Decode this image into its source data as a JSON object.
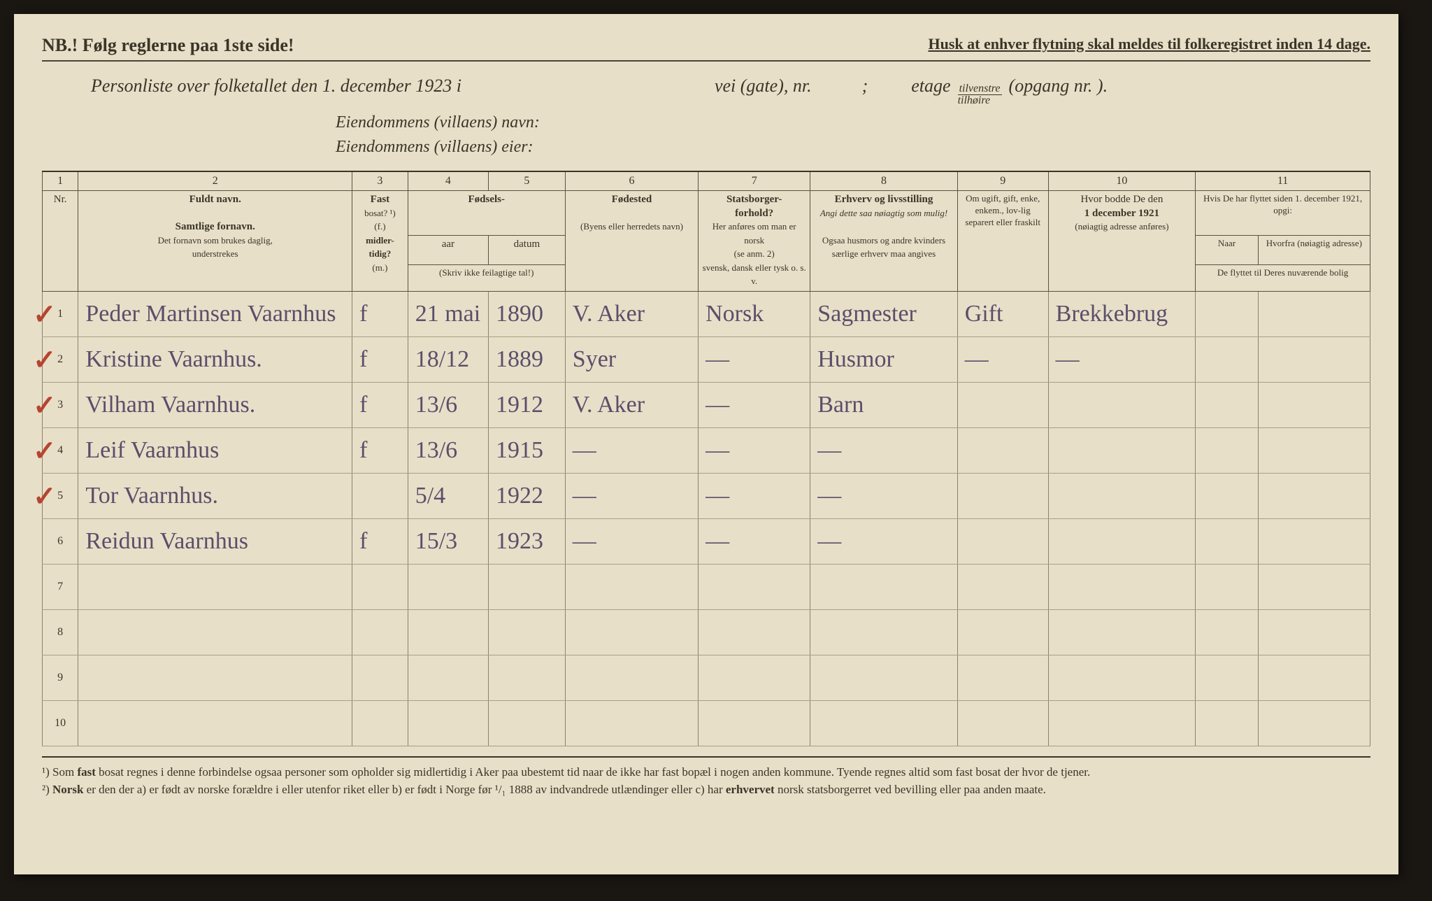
{
  "header": {
    "nb": "NB.! Følg reglerne paa 1ste side!",
    "husk": "Husk at enhver flytning skal meldes til folkeregistret inden 14 dage.",
    "title_a": "Personliste over folketallet den 1. december 1923 i",
    "title_b": "vei (gate), nr.",
    "title_c": ";",
    "title_d": "etage",
    "frac_top": "tilvenstre",
    "frac_bot": "tilhøire",
    "title_e": "(opgang nr.       ).",
    "sub1": "Eiendommens (villaens) navn:",
    "sub2": "Eiendommens (villaens) eier:"
  },
  "colnums": [
    "1",
    "2",
    "3",
    "4",
    "5",
    "6",
    "7",
    "8",
    "9",
    "10",
    "11"
  ],
  "columns": {
    "nr": "Nr.",
    "name_title": "Fuldt navn.",
    "name_sub1": "Samtlige fornavn.",
    "name_sub2": "Det fornavn som brukes daglig,",
    "name_sub3": "understrekes",
    "fast1": "Fast",
    "fast2": "bosat? ¹)",
    "fast3": "(f.)",
    "fast4": "midler-",
    "fast5": "tidig?",
    "fast6": "(m.)",
    "fodsels": "Fødsels-",
    "aar": "aar",
    "datum": "datum",
    "aar_sub": "(Skriv ikke feilagtige tal!)",
    "fodested": "Fødested",
    "fodested_sub": "(Byens eller herredets navn)",
    "stats1": "Statsborger-",
    "stats2": "forhold?",
    "stats_sub1": "Her anføres om man er norsk",
    "stats_sub2": "(se anm. 2)",
    "stats_sub3": "svensk, dansk eller tysk o. s. v.",
    "erhverv1": "Erhverv og livsstilling",
    "erhverv_sub1": "Angi dette saa nøiagtig som mulig!",
    "erhverv_sub2": "Ogsaa husmors og andre kvinders særlige erhverv maa angives",
    "ugift": "Om ugift, gift, enke, enkem., lov-lig separert eller fraskilt",
    "bodde1": "Hvor bodde De den",
    "bodde2": "1 december 1921",
    "bodde_sub": "(nøiagtig adresse anføres)",
    "flyt1": "Hvis De har flyttet siden 1. december 1921, opgi:",
    "naar": "Naar",
    "hvorfra": "Hvorfra (nøiagtig adresse)",
    "flyt2": "De flyttet til Deres nuværende bolig"
  },
  "rows": [
    {
      "nr": "1",
      "check": true,
      "name": "Peder Martinsen Vaarnhus",
      "fast": "f",
      "datum": "21 mai",
      "aar": "1890",
      "sted": "V. Aker",
      "stats": "Norsk",
      "erhv": "Sagmester",
      "gift": "Gift",
      "bodde": "Brekkebrug"
    },
    {
      "nr": "2",
      "check": true,
      "name": "Kristine Vaarnhus.",
      "fast": "f",
      "datum": "18/12",
      "aar": "1889",
      "sted": "Syer",
      "stats": "—",
      "erhv": "Husmor",
      "gift": "—",
      "bodde": "—"
    },
    {
      "nr": "3",
      "check": true,
      "name": "Vilham Vaarnhus.",
      "fast": "f",
      "datum": "13/6",
      "aar": "1912",
      "sted": "V. Aker",
      "stats": "—",
      "erhv": "Barn",
      "gift": "",
      "bodde": ""
    },
    {
      "nr": "4",
      "check": true,
      "name": "Leif Vaarnhus",
      "fast": "f",
      "datum": "13/6",
      "aar": "1915",
      "sted": "—",
      "stats": "—",
      "erhv": "—",
      "gift": "",
      "bodde": ""
    },
    {
      "nr": "5",
      "check": true,
      "name": "Tor Vaarnhus.",
      "fast": "",
      "datum": "5/4",
      "aar": "1922",
      "sted": "—",
      "stats": "—",
      "erhv": "—",
      "gift": "",
      "bodde": ""
    },
    {
      "nr": "6",
      "check": false,
      "name": "Reidun Vaarnhus",
      "fast": "f",
      "datum": "15/3",
      "aar": "1923",
      "sted": "—",
      "stats": "—",
      "erhv": "—",
      "gift": "",
      "bodde": ""
    },
    {
      "nr": "7",
      "check": false,
      "name": "",
      "fast": "",
      "datum": "",
      "aar": "",
      "sted": "",
      "stats": "",
      "erhv": "",
      "gift": "",
      "bodde": ""
    },
    {
      "nr": "8",
      "check": false,
      "name": "",
      "fast": "",
      "datum": "",
      "aar": "",
      "sted": "",
      "stats": "",
      "erhv": "",
      "gift": "",
      "bodde": ""
    },
    {
      "nr": "9",
      "check": false,
      "name": "",
      "fast": "",
      "datum": "",
      "aar": "",
      "sted": "",
      "stats": "",
      "erhv": "",
      "gift": "",
      "bodde": ""
    },
    {
      "nr": "10",
      "check": false,
      "name": "",
      "fast": "",
      "datum": "",
      "aar": "",
      "sted": "",
      "stats": "",
      "erhv": "",
      "gift": "",
      "bodde": ""
    }
  ],
  "footnotes": {
    "f1a": "¹) Som ",
    "f1b": "fast",
    "f1c": " bosat regnes i denne forbindelse ogsaa personer som opholder sig midlertidig i Aker paa ubestemt tid naar de ikke har fast bopæl i nogen anden kommune.  Tyende regnes altid som fast bosat der hvor de tjener.",
    "f2a": "²) ",
    "f2b": "Norsk",
    "f2c": " er den der a) er født av norske forældre i eller utenfor riket eller b) er født i Norge før ¹/₁ 1888 av indvandrede utlændinger eller c) har ",
    "f2d": "erhvervet",
    "f2e": " norsk statsborgerret ved bevilling eller paa anden maate."
  },
  "colors": {
    "paper": "#e8dfc8",
    "ink": "#3a3528",
    "handwriting": "#5a4f6a",
    "checkmark": "#b54530"
  }
}
